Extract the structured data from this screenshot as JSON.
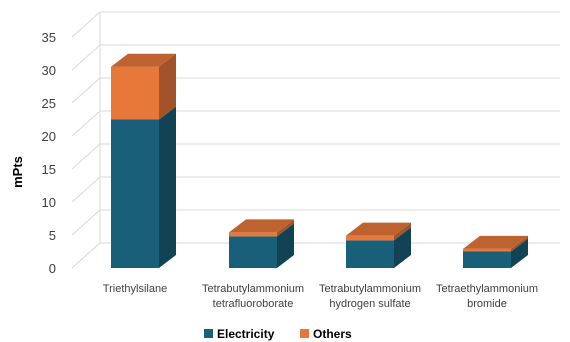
{
  "chart_data": {
    "type": "bar",
    "stacked": true,
    "three_d": true,
    "title": "",
    "xlabel": "",
    "ylabel": "mPts",
    "ylim": [
      0,
      35
    ],
    "yticks": [
      "0",
      "5",
      "10",
      "15",
      "20",
      "25",
      "30",
      "35"
    ],
    "grid": true,
    "legend_position": "bottom",
    "categories": [
      [
        "Triethylsilane"
      ],
      [
        "Tetrabutylammonium",
        "tetrafluoroborate"
      ],
      [
        "Tetrabutylammonium",
        "hydrogen sulfate"
      ],
      [
        "Tetraethylammonium",
        "bromide"
      ]
    ],
    "series": [
      {
        "name": "Electricity",
        "color": "#1a5f7a",
        "values": [
          22.5,
          4.8,
          4.2,
          2.5
        ]
      },
      {
        "name": "Others",
        "color": "#e8773a",
        "values": [
          8.0,
          0.6,
          0.7,
          0.4
        ]
      }
    ]
  }
}
